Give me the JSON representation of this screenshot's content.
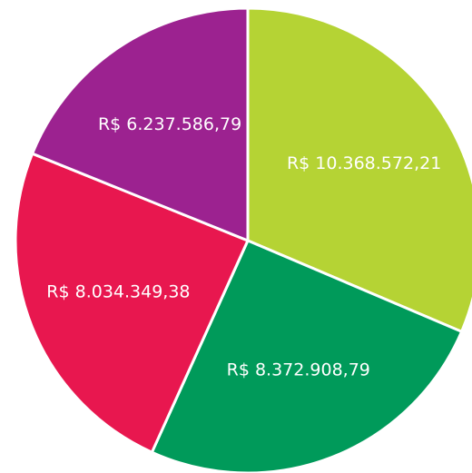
{
  "chart_data": {
    "type": "pie",
    "values": [
      10368572.21,
      8372908.79,
      8034349.38,
      6237586.79
    ],
    "value_labels": [
      "R$ 10.368.572,21",
      "R$ 8.372.908,79",
      "R$ 8.034.349,38",
      "R$ 6.237.586,79"
    ],
    "colors": [
      "#b5d334",
      "#009a5a",
      "#e8174f",
      "#9c2290"
    ]
  }
}
